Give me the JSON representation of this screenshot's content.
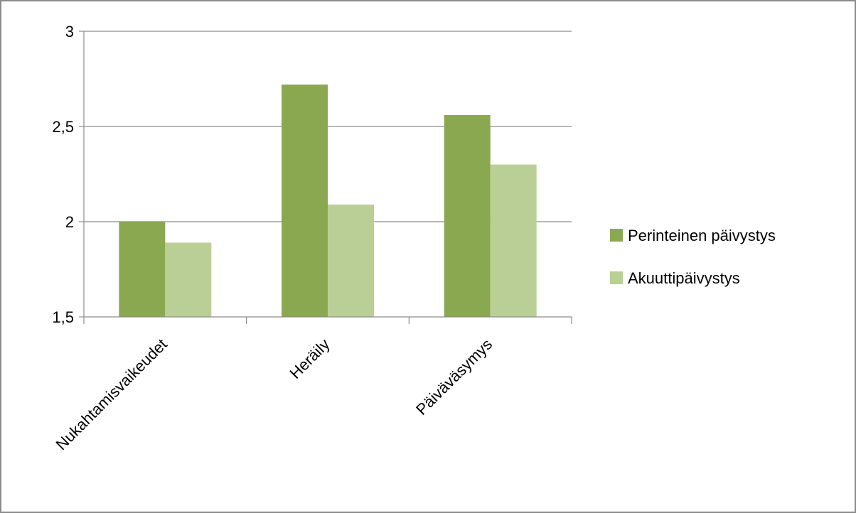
{
  "chart_data": {
    "type": "bar",
    "categories": [
      "Nukahtamisvaikeudet",
      "Heräily",
      "Päiväväsymys"
    ],
    "series": [
      {
        "name": "Perinteinen päivystys",
        "values": [
          2.0,
          2.72,
          2.56
        ],
        "color": "#8aa84f"
      },
      {
        "name": "Akuuttipäivystys",
        "values": [
          1.89,
          2.09,
          2.3
        ],
        "color": "#bacf96"
      }
    ],
    "yticks": [
      "1,5",
      "2",
      "2,5",
      "3"
    ],
    "ylim": [
      1.5,
      3
    ],
    "title": "",
    "xlabel": "",
    "ylabel": "",
    "grid": true,
    "legend_position": "right"
  }
}
